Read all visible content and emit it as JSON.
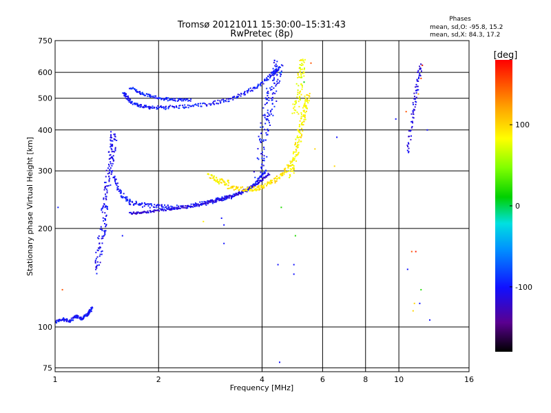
{
  "header": {
    "title_line1": "Tromsø 20121011 15:30:00–15:31:43",
    "title_line2": "RwPretec (8p)"
  },
  "stats": {
    "heading": "Phases",
    "line_o": "mean, sd,O: -95.8, 15.2",
    "line_x": "mean, sd,X:  84.3, 17.2"
  },
  "colorbar": {
    "label": "[deg]",
    "range": [
      -180,
      180
    ],
    "ticks": [
      "100",
      "0",
      "-100"
    ],
    "tick_values": [
      100,
      0,
      -100
    ]
  },
  "chart_data": {
    "type": "scatter",
    "title": "Tromsø 20121011 15:30:00–15:31:43",
    "subtitle": "RwPretec (8p)",
    "xlabel": "Frequency [MHz]",
    "ylabel": "Stationary phase Virtual Height [km]",
    "xscale": "log",
    "yscale": "log",
    "xlim": [
      1,
      16
    ],
    "ylim": [
      73,
      750
    ],
    "xticks": [
      1,
      2,
      4,
      6,
      8,
      10,
      16
    ],
    "xtick_labels": [
      "1",
      "2",
      "4",
      "6",
      "8",
      "10",
      "16"
    ],
    "yticks": [
      75,
      100,
      200,
      300,
      400,
      500,
      600,
      750
    ],
    "ytick_labels": [
      "75",
      "100",
      "200",
      "300",
      "400",
      "500",
      "600",
      "750"
    ],
    "grid": true,
    "color_variable": "phase [deg]",
    "traces": [
      {
        "x": [
          1.0,
          1.05,
          1.1,
          1.15,
          1.2,
          1.25,
          1.28
        ],
        "y": [
          103,
          106,
          104,
          108,
          106,
          110,
          114
        ],
        "phase": -100,
        "spread": 0.02
      },
      {
        "x": [
          1.32,
          1.35,
          1.38,
          1.4,
          1.43,
          1.45,
          1.47,
          1.48
        ],
        "y": [
          150,
          175,
          205,
          240,
          280,
          320,
          360,
          385
        ],
        "phase": -105,
        "spread": 0.07
      },
      {
        "x": [
          1.48,
          1.55,
          1.65,
          1.8,
          2.0,
          2.2,
          2.5,
          2.8,
          3.0,
          3.3,
          3.6,
          3.9,
          4.1
        ],
        "y": [
          290,
          255,
          240,
          236,
          233,
          232,
          235,
          240,
          245,
          252,
          262,
          278,
          300
        ],
        "phase": -100,
        "spread": 0.03
      },
      {
        "x": [
          1.65,
          1.8,
          2.0,
          2.3,
          2.7,
          3.0,
          3.3,
          3.6,
          3.9,
          4.2
        ],
        "y": [
          222,
          224,
          227,
          231,
          238,
          245,
          252,
          262,
          275,
          295
        ],
        "phase": -115,
        "spread": 0.015
      },
      {
        "x": [
          1.58,
          1.65,
          1.75,
          1.9,
          2.1,
          2.4,
          2.8,
          3.2,
          3.6,
          4.0,
          4.3,
          4.5
        ],
        "y": [
          520,
          490,
          475,
          468,
          468,
          472,
          480,
          495,
          520,
          555,
          595,
          620
        ],
        "phase": -100,
        "spread": 0.025
      },
      {
        "x": [
          1.65,
          1.8,
          2.0,
          2.2,
          2.5
        ],
        "y": [
          540,
          515,
          500,
          495,
          493
        ],
        "phase": -95,
        "spread": 0.02
      },
      {
        "x": [
          3.9,
          4.0,
          4.1,
          4.2,
          4.3,
          4.4,
          4.5
        ],
        "y": [
          300,
          360,
          420,
          480,
          540,
          600,
          640
        ],
        "phase": -100,
        "spread": 0.12
      },
      {
        "x": [
          3.2,
          3.5,
          3.8,
          4.0,
          4.3,
          4.6,
          4.9
        ],
        "y": [
          268,
          264,
          264,
          268,
          278,
          295,
          320
        ],
        "phase": 95,
        "spread": 0.03
      },
      {
        "x": [
          4.8,
          4.95,
          5.05,
          5.15,
          5.25,
          5.35,
          5.45
        ],
        "y": [
          290,
          320,
          350,
          390,
          430,
          470,
          510
        ],
        "phase": 88,
        "spread": 0.06
      },
      {
        "x": [
          5.0,
          5.1,
          5.2,
          5.25
        ],
        "y": [
          450,
          520,
          600,
          660
        ],
        "phase": 80,
        "spread": 0.07
      },
      {
        "x": [
          2.8,
          3.0,
          3.2
        ],
        "y": [
          290,
          280,
          275
        ],
        "phase": 90,
        "spread": 0.04
      },
      {
        "x": [
          10.6,
          11.0,
          11.3,
          11.6
        ],
        "y": [
          340,
          450,
          550,
          640
        ],
        "phase": -110,
        "spread": 0.04
      }
    ],
    "points": [
      {
        "x": 1.05,
        "y": 130,
        "phase": 150
      },
      {
        "x": 1.02,
        "y": 232,
        "phase": -95
      },
      {
        "x": 1.57,
        "y": 190,
        "phase": -100
      },
      {
        "x": 3.1,
        "y": 180,
        "phase": -100
      },
      {
        "x": 3.1,
        "y": 205,
        "phase": -100
      },
      {
        "x": 3.05,
        "y": 215,
        "phase": -100
      },
      {
        "x": 2.7,
        "y": 210,
        "phase": 90
      },
      {
        "x": 4.45,
        "y": 155,
        "phase": -100
      },
      {
        "x": 4.5,
        "y": 78,
        "phase": -100
      },
      {
        "x": 4.55,
        "y": 232,
        "phase": 20
      },
      {
        "x": 4.95,
        "y": 155,
        "phase": -100
      },
      {
        "x": 4.95,
        "y": 145,
        "phase": -100
      },
      {
        "x": 5.0,
        "y": 190,
        "phase": 20
      },
      {
        "x": 6.6,
        "y": 380,
        "phase": -100
      },
      {
        "x": 6.5,
        "y": 310,
        "phase": 100
      },
      {
        "x": 9.8,
        "y": 432,
        "phase": -100
      },
      {
        "x": 10.5,
        "y": 455,
        "phase": 150
      },
      {
        "x": 10.6,
        "y": 150,
        "phase": -100
      },
      {
        "x": 10.9,
        "y": 170,
        "phase": 150
      },
      {
        "x": 11.2,
        "y": 170,
        "phase": 170
      },
      {
        "x": 11.0,
        "y": 112,
        "phase": 100
      },
      {
        "x": 11.1,
        "y": 118,
        "phase": 100
      },
      {
        "x": 11.5,
        "y": 118,
        "phase": -100
      },
      {
        "x": 11.6,
        "y": 130,
        "phase": 20
      },
      {
        "x": 11.4,
        "y": 515,
        "phase": 120
      },
      {
        "x": 11.6,
        "y": 575,
        "phase": 160
      },
      {
        "x": 11.7,
        "y": 630,
        "phase": 165
      },
      {
        "x": 12.3,
        "y": 105,
        "phase": -100
      },
      {
        "x": 12.1,
        "y": 400,
        "phase": -100
      },
      {
        "x": 5.55,
        "y": 640,
        "phase": 150
      },
      {
        "x": 5.3,
        "y": 560,
        "phase": 10
      },
      {
        "x": 4.55,
        "y": 600,
        "phase": -60
      },
      {
        "x": 5.7,
        "y": 350,
        "phase": 100
      }
    ]
  }
}
